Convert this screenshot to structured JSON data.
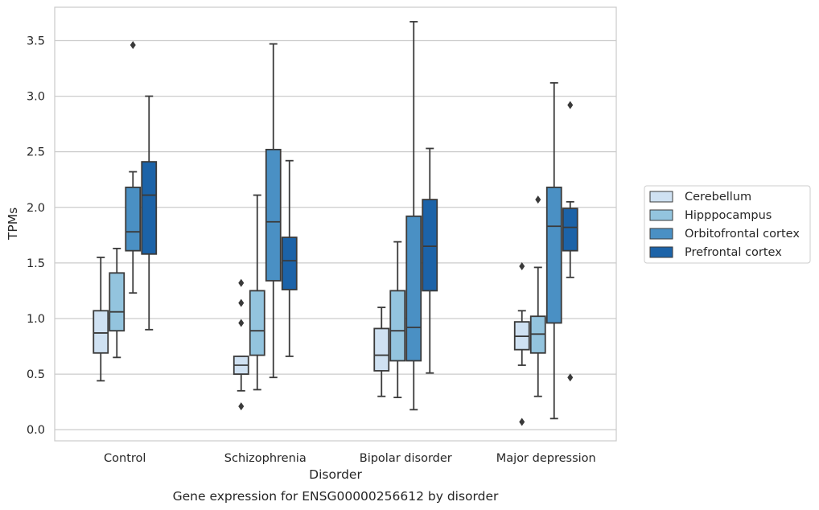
{
  "chart_data": {
    "type": "box",
    "title": "",
    "caption": "Gene expression for ENSG00000256612 by disorder",
    "xlabel": "Disorder",
    "ylabel": "TPMs",
    "ylim": [
      -0.1,
      3.8
    ],
    "yticks": [
      "0.0",
      "0.5",
      "1.0",
      "1.5",
      "2.0",
      "2.5",
      "3.0",
      "3.5"
    ],
    "categories": [
      "Control",
      "Schizophrenia",
      "Bipolar disorder",
      "Major depression"
    ],
    "grid": "horizontal",
    "legend_position": "right",
    "series": [
      {
        "name": "Cerebellum",
        "color": "#cfe1f2",
        "boxes": [
          {
            "whisker_low": 0.44,
            "q1": 0.69,
            "median": 0.87,
            "q3": 1.07,
            "whisker_high": 1.55,
            "outliers": []
          },
          {
            "whisker_low": 0.35,
            "q1": 0.5,
            "median": 0.58,
            "q3": 0.66,
            "whisker_high": 0.66,
            "outliers": [
              0.21,
              0.96,
              1.14,
              1.32
            ]
          },
          {
            "whisker_low": 0.3,
            "q1": 0.53,
            "median": 0.67,
            "q3": 0.91,
            "whisker_high": 1.1,
            "outliers": []
          },
          {
            "whisker_low": 0.58,
            "q1": 0.72,
            "median": 0.84,
            "q3": 0.97,
            "whisker_high": 1.07,
            "outliers": [
              0.07,
              1.47
            ]
          }
        ]
      },
      {
        "name": "Hipppocampus",
        "color": "#93c4de",
        "boxes": [
          {
            "whisker_low": 0.65,
            "q1": 0.89,
            "median": 1.06,
            "q3": 1.41,
            "whisker_high": 1.63,
            "outliers": []
          },
          {
            "whisker_low": 0.36,
            "q1": 0.67,
            "median": 0.89,
            "q3": 1.25,
            "whisker_high": 2.11,
            "outliers": []
          },
          {
            "whisker_low": 0.29,
            "q1": 0.62,
            "median": 0.89,
            "q3": 1.25,
            "whisker_high": 1.69,
            "outliers": []
          },
          {
            "whisker_low": 0.3,
            "q1": 0.69,
            "median": 0.86,
            "q3": 1.02,
            "whisker_high": 1.46,
            "outliers": [
              2.07
            ]
          }
        ]
      },
      {
        "name": "Orbitofrontal cortex",
        "color": "#4a90c4",
        "boxes": [
          {
            "whisker_low": 1.23,
            "q1": 1.61,
            "median": 1.78,
            "q3": 2.18,
            "whisker_high": 2.32,
            "outliers": [
              3.46
            ]
          },
          {
            "whisker_low": 0.47,
            "q1": 1.34,
            "median": 1.87,
            "q3": 2.52,
            "whisker_high": 3.47,
            "outliers": []
          },
          {
            "whisker_low": 0.18,
            "q1": 0.62,
            "median": 0.92,
            "q3": 1.92,
            "whisker_high": 3.67,
            "outliers": []
          },
          {
            "whisker_low": 0.1,
            "q1": 0.96,
            "median": 1.83,
            "q3": 2.18,
            "whisker_high": 3.12,
            "outliers": []
          }
        ]
      },
      {
        "name": "Prefrontal cortex",
        "color": "#1c63a8",
        "boxes": [
          {
            "whisker_low": 0.9,
            "q1": 1.58,
            "median": 2.11,
            "q3": 2.41,
            "whisker_high": 3.0,
            "outliers": []
          },
          {
            "whisker_low": 0.66,
            "q1": 1.26,
            "median": 1.52,
            "q3": 1.73,
            "whisker_high": 2.42,
            "outliers": []
          },
          {
            "whisker_low": 0.51,
            "q1": 1.25,
            "median": 1.65,
            "q3": 2.07,
            "whisker_high": 2.53,
            "outliers": []
          },
          {
            "whisker_low": 1.37,
            "q1": 1.61,
            "median": 1.82,
            "q3": 1.99,
            "whisker_high": 2.05,
            "outliers": [
              0.47,
              2.92
            ]
          }
        ]
      }
    ]
  }
}
